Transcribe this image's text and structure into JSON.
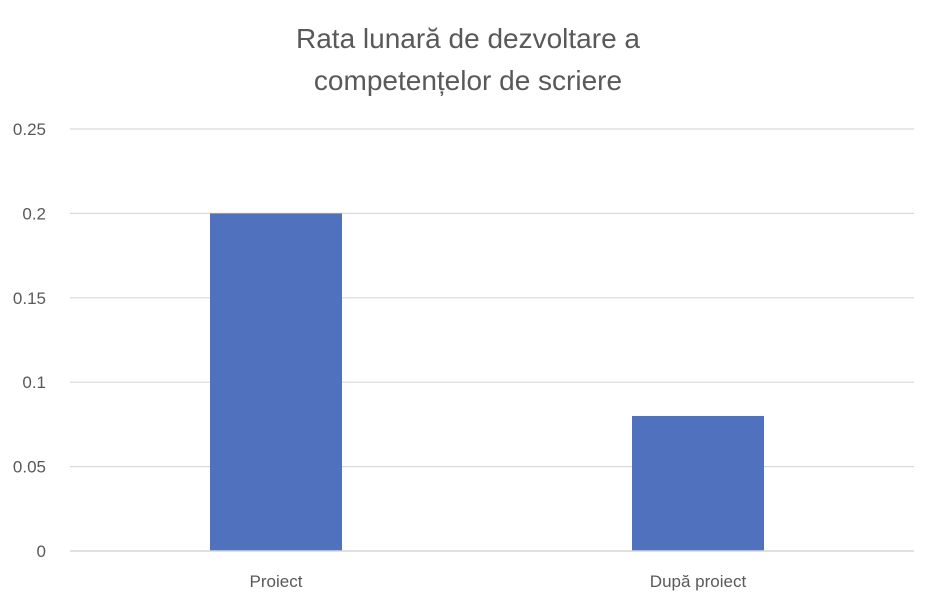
{
  "chart_data": {
    "type": "bar",
    "title_lines": [
      "Rata lunară de dezvoltare a",
      "competențelor de scriere"
    ],
    "categories": [
      "Proiect",
      "După proiect"
    ],
    "values": [
      0.2,
      0.08
    ],
    "ylim": [
      0,
      0.25
    ],
    "yticks": [
      "0",
      "0.05",
      "0.1",
      "0.15",
      "0.2",
      "0.25"
    ],
    "grid": true,
    "legend": "none",
    "bar_color": "#4f71be",
    "grid_color": "#d9d9d9",
    "text_color": "#595959"
  }
}
